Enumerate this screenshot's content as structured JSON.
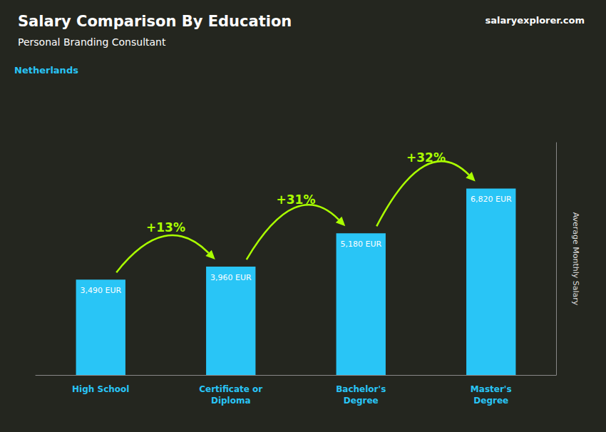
{
  "chart_data": {
    "type": "bar",
    "title": "Salary Comparison By Education",
    "subtitle": "Personal Branding Consultant",
    "annotations": [
      "Netherlands",
      "salaryexplorer.com"
    ],
    "ylabel": "Average Monthly Salary",
    "categories": [
      "High School",
      "Certificate or\nDiploma",
      "Bachelor's\nDegree",
      "Master's\nDegree"
    ],
    "values": [
      3490,
      3960,
      5180,
      6820
    ],
    "value_labels": [
      "3,490 EUR",
      "3,960 EUR",
      "5,180 EUR",
      "6,820 EUR"
    ],
    "data_labels": true,
    "change_labels": [
      "+13%",
      "+31%",
      "+32%"
    ],
    "color": "#29c5f6",
    "ylim": [
      0,
      8500
    ],
    "tick_labels": "x",
    "grid": false
  }
}
